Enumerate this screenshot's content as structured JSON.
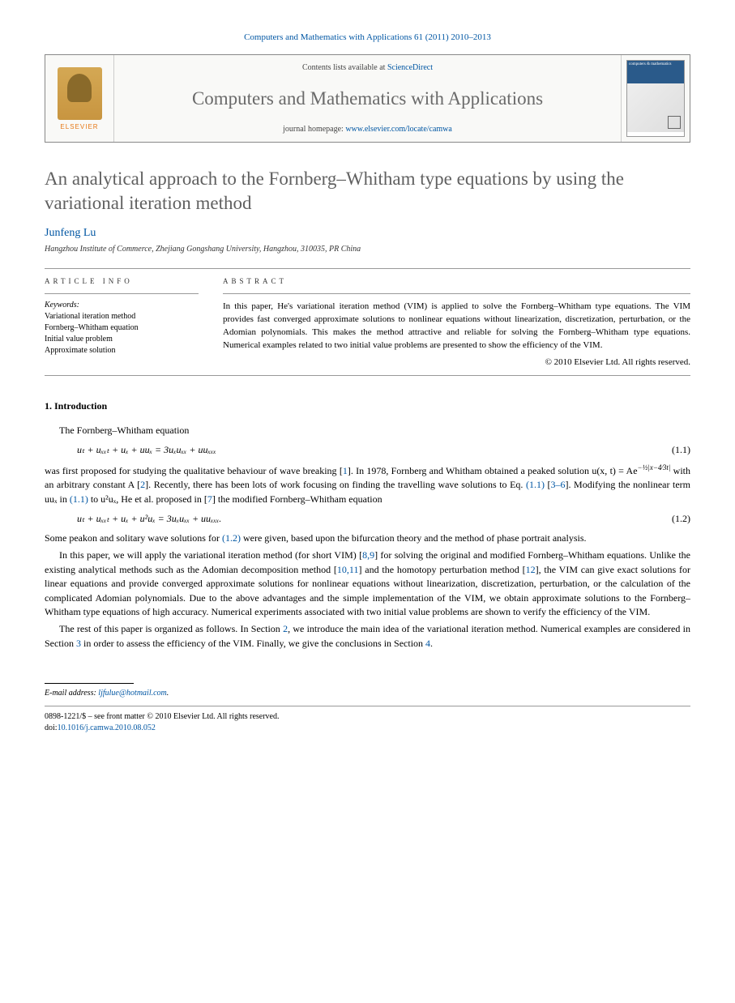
{
  "citation": "Computers and Mathematics with Applications 61 (2011) 2010–2013",
  "header": {
    "contents_prefix": "Contents lists available at ",
    "contents_link": "ScienceDirect",
    "journal_name": "Computers and Mathematics with Applications",
    "homepage_prefix": "journal homepage: ",
    "homepage_url": "www.elsevier.com/locate/camwa",
    "elsevier": "ELSEVIER",
    "cover_title": "computers & mathematics"
  },
  "title": "An analytical approach to the Fornberg–Whitham type equations by using the variational iteration method",
  "author": "Junfeng Lu",
  "affiliation": "Hangzhou Institute of Commerce, Zhejiang Gongshang University, Hangzhou, 310035, PR China",
  "info": {
    "label": "ARTICLE INFO",
    "keywords_label": "Keywords:",
    "keywords": [
      "Variational iteration method",
      "Fornberg–Whitham equation",
      "Initial value problem",
      "Approximate solution"
    ]
  },
  "abstract": {
    "label": "ABSTRACT",
    "text": "In this paper, He's variational iteration method (VIM) is applied to solve the Fornberg–Whitham type equations. The VIM provides fast converged approximate solutions to nonlinear equations without linearization, discretization, perturbation, or the Adomian polynomials. This makes the method attractive and reliable for solving the Fornberg–Whitham type equations. Numerical examples related to two initial value problems are presented to show the efficiency of the VIM.",
    "copyright": "© 2010 Elsevier Ltd. All rights reserved."
  },
  "sections": {
    "intro_heading": "1. Introduction",
    "para1": "The Fornberg–Whitham equation",
    "eq1": "uₜ + uₓₓₜ + uₓ + uuₓ = 3uₓuₓₓ + uuₓₓₓ",
    "eq1_num": "(1.1)",
    "para2_a": "was first proposed for studying the qualitative behaviour of wave breaking [",
    "para2_b": "]. In 1978, Fornberg and Whitham obtained a peaked solution u(x, t) = Ae",
    "para2_exp": "−½|x−4⁄3t|",
    "para2_c": " with an arbitrary constant A [",
    "para2_d": "]. Recently, there has been lots of work focusing on finding the travelling wave solutions to Eq. ",
    "para2_e": " [",
    "para2_f": "]. Modifying the nonlinear term uuₓ in ",
    "para2_g": " to u²uₓ, He et al. proposed in [",
    "para2_h": "] the modified Fornberg–Whitham equation",
    "eq2": "uₜ + uₓₓₜ + uₓ + u²uₓ = 3uₓuₓₓ + uuₓₓₓ.",
    "eq2_num": "(1.2)",
    "para3_a": "Some peakon and solitary wave solutions for ",
    "para3_b": " were given, based upon the bifurcation theory and the method of phase portrait analysis.",
    "para4_a": "In this paper, we will apply the variational iteration method (for short VIM) [",
    "para4_b": "] for solving the original and modified Fornberg–Whitham equations. Unlike the existing analytical methods such as the Adomian decomposition method [",
    "para4_c": "] and the homotopy perturbation method [",
    "para4_d": "], the VIM can give exact solutions for linear equations and provide converged approximate solutions for nonlinear equations without linearization, discretization, perturbation, or the calculation of the complicated Adomian polynomials. Due to the above advantages and the simple implementation of the VIM, we obtain approximate solutions to the Fornberg–Whitham type equations of high accuracy. Numerical experiments associated with two initial value problems are shown to verify the efficiency of the VIM.",
    "para5_a": "The rest of this paper is organized as follows. In Section ",
    "para5_b": ", we introduce the main idea of the variational iteration method. Numerical examples are considered in Section ",
    "para5_c": " in order to assess the efficiency of the VIM. Finally, we give the conclusions in Section ",
    "para5_d": "."
  },
  "refs": {
    "r1": "1",
    "r2": "2",
    "r3_6": "3–6",
    "r7": "7",
    "r8_9": "8,9",
    "r10_11": "10,11",
    "r12": "12",
    "eq11": "(1.1)",
    "eq11b": "(1.1)",
    "eq12": "(1.2)",
    "s2": "2",
    "s3": "3",
    "s4": "4"
  },
  "footnote": {
    "label": "E-mail address: ",
    "email": "ljfulue@hotmail.com",
    "suffix": "."
  },
  "bottom": {
    "line1": "0898-1221/$ – see front matter © 2010 Elsevier Ltd. All rights reserved.",
    "doi_label": "doi:",
    "doi": "10.1016/j.camwa.2010.08.052"
  },
  "colors": {
    "link": "#0056a3",
    "title_gray": "#606060",
    "elsevier_orange": "#e67817"
  }
}
